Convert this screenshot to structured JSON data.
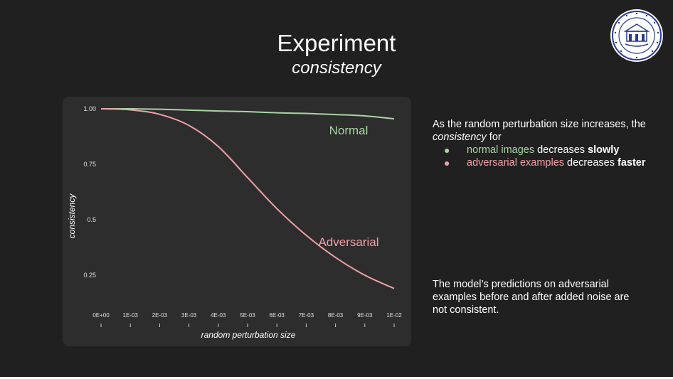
{
  "slide": {
    "title": "Experiment",
    "subtitle": "consistency"
  },
  "notes": {
    "intro_1": "As the random perturbation size increases, the ",
    "intro_em": "consistency",
    "intro_2": " for",
    "bullets": [
      {
        "colored": "normal images",
        "rest": " decreases ",
        "bold": "slowly"
      },
      {
        "colored": "adversarial examples",
        "rest": " decreases ",
        "bold": "faster"
      }
    ],
    "conclusion": "The model’s predictions on adversarial examples before and after added noise are not consistent."
  },
  "colors": {
    "background": "#202020",
    "panel": "#2d2d2d",
    "normal": "#a8d5a2",
    "adversarial": "#f0a0a6",
    "text": "#ffffff"
  },
  "chart_data": {
    "type": "line",
    "xlabel": "random perturbation size",
    "ylabel": "consistency",
    "xlim": [
      0,
      0.01
    ],
    "ylim": [
      0.17,
      1.0
    ],
    "x_ticks": [
      "0E+00",
      "1E-03",
      "2E-03",
      "3E-03",
      "4E-03",
      "5E-03",
      "6E-03",
      "7E-03",
      "8E-03",
      "9E-03",
      "1E-02"
    ],
    "y_ticks": [
      {
        "value": 1.0,
        "label": "1.00"
      },
      {
        "value": 0.75,
        "label": "0.75"
      },
      {
        "value": 0.5,
        "label": "0.5"
      },
      {
        "value": 0.25,
        "label": "0.25"
      }
    ],
    "grid": false,
    "legend": "inline labels",
    "x": [
      0,
      0.001,
      0.002,
      0.003,
      0.004,
      0.005,
      0.006,
      0.007,
      0.008,
      0.009,
      0.01
    ],
    "series": [
      {
        "name": "Normal",
        "color": "#a8d5a2",
        "values": [
          1.0,
          1.0,
          0.998,
          0.994,
          0.99,
          0.987,
          0.982,
          0.979,
          0.974,
          0.968,
          0.955
        ]
      },
      {
        "name": "Adversarial",
        "color": "#f0a0a6",
        "values": [
          1.0,
          0.995,
          0.975,
          0.925,
          0.83,
          0.69,
          0.55,
          0.43,
          0.33,
          0.25,
          0.19
        ]
      }
    ]
  }
}
